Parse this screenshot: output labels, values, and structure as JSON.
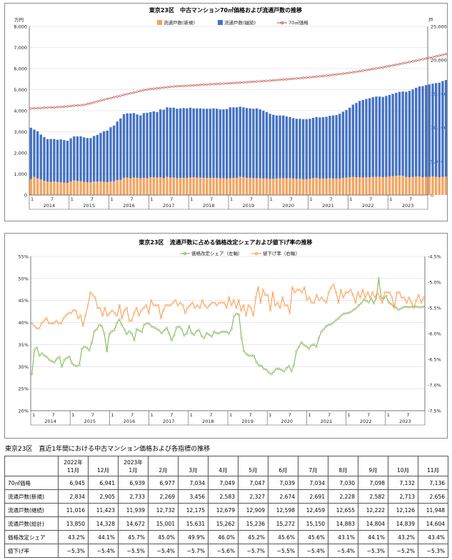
{
  "charts": [
    {
      "title": "東京23区　中古マンション70㎡価格および流通戸数の推移",
      "left_axis_unit": "万円",
      "right_axis_unit": "戸",
      "left_ticks": [
        "0",
        "1,000",
        "2,000",
        "3,000",
        "4,000",
        "5,000",
        "6,000",
        "7,000",
        "8,000"
      ],
      "right_ticks": [
        "0",
        "5,000",
        "10,000",
        "15,000",
        "20,000",
        "25,000"
      ],
      "legend": [
        "流通戸数(新規)",
        "流通戸数(継続)",
        "70㎡価格"
      ]
    },
    {
      "title": "東京23区　流通戸数に占める価格改定シェアおよび値下げ率の推移",
      "left_ticks": [
        "20%",
        "25%",
        "30%",
        "35%",
        "40%",
        "45%",
        "50%",
        "55%"
      ],
      "right_ticks": [
        "-7.5%",
        "-7.0%",
        "-6.5%",
        "-6.0%",
        "-5.5%",
        "-5.0%",
        "-4.5%"
      ],
      "legend": [
        "価格改定シェア（左軸）",
        "値下げ率（右軸）"
      ]
    }
  ],
  "x_axis": {
    "month_labels": [
      "1",
      "7"
    ],
    "years": [
      "2014",
      "2015",
      "2016",
      "2017",
      "2018",
      "2019",
      "2020",
      "2021",
      "2022",
      "2023"
    ]
  },
  "colors": {
    "new": "#f4a460",
    "continued": "#4472c4",
    "price": "#c0504d",
    "share": "#77b046",
    "cut": "#f79646"
  },
  "chart_data": [
    {
      "type": "bar",
      "title": "東京23区　中古マンション70㎡価格および流通戸数の推移",
      "x": "monthly, 2014-01 to 2023-11",
      "stacked": true,
      "series": [
        {
          "name": "流通戸数(新規)",
          "axis": "right",
          "values": [
            2380,
            2700,
            2450,
            2300,
            2100,
            2000,
            1950,
            2000,
            1950,
            1900,
            1850,
            1800,
            2000,
            2150,
            2100,
            2050,
            1950,
            1900,
            1900,
            2000,
            2000,
            2000,
            1950,
            1900,
            2000,
            2050,
            2200,
            2250,
            2550,
            2600,
            2500,
            2600,
            2550,
            2500,
            2550,
            2500,
            2650,
            2650,
            2600,
            2650,
            2500,
            2700,
            2600,
            2600,
            2500,
            2550,
            2550,
            2550,
            2600,
            2650,
            2600,
            2600,
            2550,
            2550,
            2550,
            2550,
            2550,
            2500,
            2500,
            2450,
            2500,
            2550,
            2550,
            2700,
            2650,
            2550,
            2550,
            2500,
            2500,
            2500,
            2450,
            2450,
            2400,
            2400,
            2450,
            2500,
            2500,
            2500,
            2500,
            2450,
            2400,
            2400,
            2350,
            2350,
            2400,
            2500,
            2550,
            2450,
            2450,
            2450,
            2500,
            2450,
            2450,
            2450,
            2550,
            2600,
            2650,
            2700,
            2650,
            2650,
            2600,
            2650,
            2650,
            2700,
            2700,
            2700,
            2650,
            2700,
            2750,
            2800,
            2850,
            2900,
            2850,
            2700,
            2650,
            2700,
            2750,
            2750,
            2650,
            2700,
            2700,
            2750,
            2700,
            2650,
            2700,
            2750,
            2800,
            2750,
            2750,
            2800,
            2800,
            2750,
            2800,
            2750
          ]
        },
        {
          "name": "流通戸数(継続)",
          "axis": "right",
          "values": [
            7600,
            7000,
            7000,
            6650,
            6500,
            6300,
            6350,
            6300,
            6250,
            6350,
            6300,
            6250,
            6400,
            6550,
            6600,
            6650,
            6600,
            6550,
            6550,
            6750,
            6900,
            7200,
            7500,
            7650,
            8050,
            8250,
            8700,
            9100,
            9450,
            9500,
            9600,
            9550,
            9400,
            9300,
            9600,
            9700,
            9650,
            9750,
            9700,
            10050,
            10150,
            10300,
            10350,
            10350,
            10300,
            10300,
            10350,
            10300,
            10350,
            10200,
            10250,
            10250,
            10250,
            10250,
            10250,
            10300,
            10250,
            10200,
            10200,
            10300,
            10500,
            10450,
            10450,
            10400,
            10350,
            10350,
            10300,
            10300,
            10350,
            10200,
            10050,
            9850,
            9650,
            9500,
            9350,
            9300,
            9300,
            9150,
            9050,
            8950,
            8900,
            8900,
            8900,
            8900,
            8900,
            8950,
            9000,
            9050,
            9100,
            9150,
            9250,
            9350,
            9400,
            9600,
            9800,
            10000,
            10300,
            10700,
            11000,
            11300,
            11500,
            11600,
            11700,
            11800,
            11900,
            11900,
            11900,
            12000,
            12100,
            12200,
            12300,
            12400,
            12500,
            12600,
            12800,
            12950,
            13150,
            13350,
            13500,
            13600,
            13700,
            13750,
            13900,
            14000,
            14200,
            14300,
            14400,
            14500,
            14500,
            14550,
            14600,
            14700,
            14700,
            14700
          ]
        },
        {
          "name": "70㎡価格",
          "type": "line",
          "axis": "left",
          "values": [
            4105,
            4116,
            4120,
            4130,
            4143,
            4151,
            4160,
            4163,
            4173,
            4180,
            4187,
            4204,
            4221,
            4243,
            4253,
            4265,
            4282,
            4319,
            4355,
            4398,
            4441,
            4483,
            4516,
            4563,
            4600,
            4640,
            4674,
            4710,
            4750,
            4789,
            4828,
            4861,
            4905,
            4940,
            4980,
            5000,
            5034,
            5048,
            5065,
            5083,
            5100,
            5117,
            5134,
            5151,
            5163,
            5170,
            5178,
            5186,
            5194,
            5205,
            5215,
            5226,
            5236,
            5244,
            5253,
            5262,
            5270,
            5279,
            5288,
            5296,
            5305,
            5315,
            5324,
            5334,
            5344,
            5355,
            5366,
            5376,
            5386,
            5397,
            5407,
            5418,
            5430,
            5442,
            5456,
            5468,
            5480,
            5492,
            5505,
            5518,
            5530,
            5545,
            5559,
            5573,
            5588,
            5603,
            5618,
            5633,
            5649,
            5666,
            5683,
            5701,
            5720,
            5740,
            5760,
            5781,
            5803,
            5826,
            5850,
            5875,
            5900,
            5926,
            5952,
            5979,
            6007,
            6035,
            6064,
            6093,
            6123,
            6153,
            6184,
            6215,
            6246,
            6278,
            6310,
            6342,
            6375,
            6408,
            6442,
            6476,
            6510,
            6545,
            6580,
            6615,
            6650,
            6686,
            6722,
            6758,
            6795,
            6832,
            6869,
            6907,
            6945,
            6983
          ]
        }
      ],
      "ylim_left": [
        0,
        8000
      ],
      "ylim_right": [
        0,
        25000
      ]
    },
    {
      "type": "line",
      "title": "東京23区　流通戸数に占める価格改定シェアおよび値下げ率の推移",
      "x": "monthly, 2014-01 to 2023-11",
      "series": [
        {
          "name": "価格改定シェア（左軸）",
          "axis": "left",
          "values": [
            28.3,
            33.8,
            34.3,
            32.5,
            33.0,
            32.5,
            32.2,
            31.5,
            31.2,
            31.0,
            31.8,
            32.2,
            30.0,
            31.5,
            32.0,
            32.3,
            30.8,
            30.3,
            30.1,
            30.4,
            34.0,
            34.5,
            34.3,
            33.7,
            35.5,
            38.0,
            38.5,
            39.5,
            39.2,
            37.5,
            33.5,
            37.4,
            38.0,
            38.3,
            39.8,
            40.7,
            39.5,
            38.5,
            37.4,
            38.0,
            37.5,
            36.0,
            38.5,
            38.2,
            37.9,
            39.5,
            39.8,
            39.7,
            39.1,
            38.9,
            38.6,
            38.2,
            37.6,
            38.2,
            38.8,
            37.5,
            36.0,
            37.2,
            38.9,
            39.1,
            38.5,
            37.1,
            37.5,
            39.2,
            37.6,
            37.2,
            38.1,
            38.3,
            37.0,
            36.5,
            37.6,
            37.3,
            36.8,
            37.9,
            37.6,
            37.6,
            37.9,
            37.9,
            37.9,
            37.5,
            38.5,
            41.5,
            42.0,
            41.8,
            36.5,
            33.5,
            32.8,
            32.5,
            32.5,
            32.5,
            31.0,
            30.3,
            30.2,
            29.5,
            29.3,
            28.6,
            28.3,
            28.9,
            29.5,
            29.5,
            29.3,
            28.9,
            29.6,
            30.1,
            29.0,
            30.4,
            33.5,
            34.5,
            35.5,
            34.9,
            34.6,
            34.1,
            34.8,
            35.0,
            34.5,
            36.5,
            37.9,
            38.5,
            39.2,
            39.5,
            39.6,
            40.1,
            40.6,
            41.0,
            41.6,
            42.0,
            42.1,
            42.2,
            42.5,
            42.9,
            43.3,
            43.9,
            44.4,
            45.2,
            45.0,
            44.6,
            45.5,
            44.4,
            45.5,
            50.0,
            45.5,
            45.5,
            46.0,
            44.6,
            44.2,
            43.7,
            43.4,
            42.9,
            43.2,
            43.5,
            43.6,
            43.5,
            43.6,
            43.5,
            43.6,
            43.5,
            43.5,
            43.6
          ]
        },
        {
          "name": "値下げ率（右軸）",
          "axis": "right",
          "values": [
            -5.8,
            -5.85,
            -5.9,
            -5.9,
            -5.8,
            -5.75,
            -5.7,
            -5.8,
            -5.8,
            -5.8,
            -5.75,
            -5.8,
            -5.8,
            -5.7,
            -5.65,
            -5.6,
            -5.6,
            -5.55,
            -5.55,
            -5.7,
            -5.65,
            -5.85,
            -5.65,
            -5.45,
            -5.2,
            -5.25,
            -5.3,
            -5.5,
            -5.5,
            -5.65,
            -5.5,
            -5.65,
            -5.6,
            -5.55,
            -5.6,
            -5.65,
            -5.45,
            -5.7,
            -5.55,
            -5.5,
            -5.75,
            -5.75,
            -5.6,
            -5.5,
            -5.65,
            -5.55,
            -5.5,
            -5.45,
            -5.6,
            -5.35,
            -5.45,
            -5.45,
            -5.45,
            -5.7,
            -5.55,
            -5.45,
            -5.45,
            -5.45,
            -5.4,
            -5.35,
            -5.45,
            -5.4,
            -5.45,
            -5.6,
            -5.5,
            -5.45,
            -5.4,
            -5.5,
            -5.45,
            -5.5,
            -5.35,
            -5.45,
            -5.5,
            -5.45,
            -5.4,
            -5.4,
            -5.45,
            -5.4,
            -5.4,
            -5.4,
            -5.5,
            -5.3,
            -5.45,
            -5.35,
            -5.5,
            -5.35,
            -5.55,
            -5.45,
            -5.65,
            -5.45,
            -5.5,
            -5.65,
            -5.3,
            -5.1,
            -5.4,
            -5.15,
            -5.25,
            -5.25,
            -5.55,
            -5.2,
            -5.45,
            -5.4,
            -5.5,
            -5.3,
            -5.45,
            -5.45,
            -5.6,
            -5.1,
            -5.2,
            -5.15,
            -5.15,
            -5.2,
            -5.1,
            -5.35,
            -5.3,
            -5.4,
            -5.4,
            -5.25,
            -5.35,
            -5.3,
            -5.35,
            -5.4,
            -5.2,
            -5.1,
            -5.05,
            -5.2,
            -5.4,
            -5.15,
            -5.3,
            -5.2,
            -5.2,
            -5.15,
            -5.25,
            -5.4,
            -5.2,
            -5.3,
            -5.15,
            -5.3,
            -5.2,
            -5.3,
            -5.2,
            -5.3,
            -5.2,
            -5.3,
            -5.4,
            -5.2,
            -5.2,
            -5.2,
            -5.3,
            -5.5,
            -5.2,
            -5.2,
            -5.3,
            -5.3,
            -5.4,
            -5.3,
            -5.4,
            -5.5,
            -5.35,
            -5.25,
            -5.4,
            -5.3
          ]
        }
      ],
      "ylim_left": [
        20,
        55
      ],
      "ylim_right": [
        -7.5,
        -4.5
      ]
    }
  ],
  "table": {
    "title": "東京23区　直近1年間における中古マンション価格および各指標の推移",
    "columns": [
      {
        "year": "2022年",
        "month": "11月"
      },
      {
        "year": "",
        "month": "12月"
      },
      {
        "year": "2023年",
        "month": "1月"
      },
      {
        "year": "",
        "month": "2月"
      },
      {
        "year": "",
        "month": "3月"
      },
      {
        "year": "",
        "month": "4月"
      },
      {
        "year": "",
        "month": "5月"
      },
      {
        "year": "",
        "month": "6月"
      },
      {
        "year": "",
        "month": "7月"
      },
      {
        "year": "",
        "month": "8月"
      },
      {
        "year": "",
        "month": "9月"
      },
      {
        "year": "",
        "month": "10月"
      },
      {
        "year": "",
        "month": "11月"
      }
    ],
    "rows": [
      {
        "label": "70㎡価格",
        "values": [
          "6,945",
          "6,941",
          "6,939",
          "6,977",
          "7,034",
          "7,049",
          "7,047",
          "7,039",
          "7,034",
          "7,030",
          "7,098",
          "7,132",
          "7,136"
        ]
      },
      {
        "label": "流通戸数(新規)",
        "values": [
          "2,834",
          "2,905",
          "2,733",
          "2,269",
          "3,456",
          "2,583",
          "2,327",
          "2,674",
          "2,691",
          "2,228",
          "2,582",
          "2,713",
          "2,656"
        ]
      },
      {
        "label": "流通戸数(継続)",
        "values": [
          "11,016",
          "11,423",
          "11,939",
          "12,732",
          "12,175",
          "12,679",
          "12,909",
          "12,598",
          "12,459",
          "12,655",
          "12,222",
          "12,126",
          "11,948"
        ]
      },
      {
        "label": "流通戸数(総計)",
        "values": [
          "13,850",
          "14,328",
          "14,672",
          "15,001",
          "15,631",
          "15,262",
          "15,236",
          "15,272",
          "15,150",
          "14,883",
          "14,804",
          "14,839",
          "14,604"
        ]
      },
      {
        "label": "価格改定シェア",
        "values": [
          "43.2%",
          "44.1%",
          "45.7%",
          "45.0%",
          "49.9%",
          "46.0%",
          "45.2%",
          "45.6%",
          "45.6%",
          "43.1%",
          "44.1%",
          "43.2%",
          "43.4%"
        ]
      },
      {
        "label": "値下げ率",
        "values": [
          "−5.3%",
          "−5.4%",
          "−5.5%",
          "−5.4%",
          "−5.7%",
          "−5.6%",
          "−5.7%",
          "−5.5%",
          "−5.4%",
          "−5.4%",
          "−5.3%",
          "−5.2%",
          "−5.3%"
        ]
      }
    ]
  }
}
